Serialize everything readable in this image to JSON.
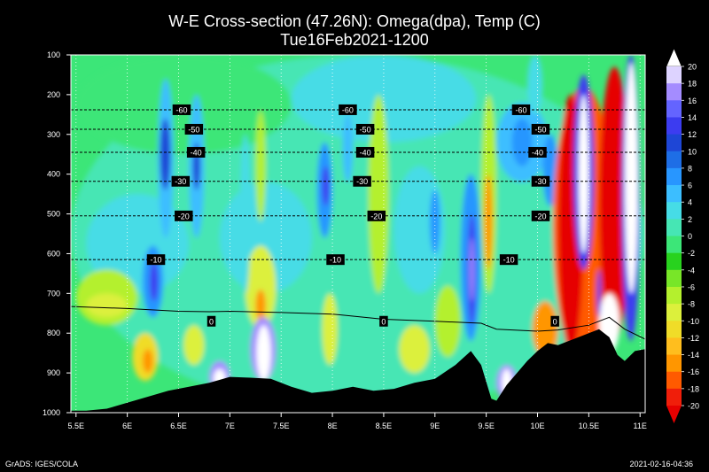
{
  "chart_data": {
    "type": "heatmap",
    "title": "W-E Cross-section (47.26N): Omega(dpa), Temp (C)",
    "subtitle": "Tue16Feb2021-1200",
    "x_ticks": [
      "5.5E",
      "6E",
      "6.5E",
      "7E",
      "7.5E",
      "8E",
      "8.5E",
      "9E",
      "9.5E",
      "10E",
      "10.5E",
      "11E"
    ],
    "x_values": [
      5.5,
      6,
      6.5,
      7,
      7.5,
      8,
      8.5,
      9,
      9.5,
      10,
      10.5,
      11
    ],
    "xlim": [
      5.45,
      11.05
    ],
    "y_ticks": [
      "100",
      "200",
      "300",
      "400",
      "500",
      "600",
      "700",
      "800",
      "900",
      "1000"
    ],
    "y_values": [
      100,
      200,
      300,
      400,
      500,
      600,
      700,
      800,
      900,
      1000
    ],
    "ylim": [
      100,
      1000
    ],
    "colorbar": {
      "labels": [
        "20",
        "18",
        "16",
        "14",
        "12",
        "10",
        "8",
        "6",
        "4",
        "2",
        "0",
        "-2",
        "-4",
        "-6",
        "-8",
        "-10",
        "-12",
        "-14",
        "-16",
        "-18",
        "-20"
      ],
      "colors": [
        "#ffffff",
        "#ddd3ff",
        "#a48cff",
        "#6464ff",
        "#3c3cf0",
        "#1e46d6",
        "#1e6ee6",
        "#2896ff",
        "#3cbeff",
        "#46dce6",
        "#46e6b4",
        "#3ce678",
        "#28d21e",
        "#78e628",
        "#b4f02d",
        "#dcf03c",
        "#f0dc28",
        "#ffbe1e",
        "#ff9600",
        "#ff5a00",
        "#f01e0a",
        "#e60000"
      ]
    },
    "temperature_contours": [
      {
        "label": "-60",
        "p": 238,
        "label_x": [
          6.53,
          8.15,
          9.84
        ]
      },
      {
        "label": "-50",
        "p": 287,
        "label_x": [
          6.65,
          8.32,
          10.03
        ]
      },
      {
        "label": "-40",
        "p": 345,
        "label_x": [
          6.67,
          8.32,
          10.0
        ]
      },
      {
        "label": "-30",
        "p": 418,
        "label_x": [
          6.52,
          8.29,
          10.03
        ]
      },
      {
        "label": "-20",
        "p": 505,
        "label_x": [
          6.55,
          8.43,
          10.03
        ]
      },
      {
        "label": "-10",
        "p": 615,
        "label_x": [
          6.28,
          8.03,
          9.72
        ]
      },
      {
        "label": "0",
        "p": 770,
        "label_x": [
          6.82,
          8.5,
          10.17
        ]
      }
    ],
    "zero_isotherm": [
      [
        5.45,
        733
      ],
      [
        6,
        738
      ],
      [
        6.5,
        745
      ],
      [
        6.8,
        746
      ],
      [
        7,
        745
      ],
      [
        7.5,
        748
      ],
      [
        8,
        752
      ],
      [
        8.5,
        765
      ],
      [
        9,
        770
      ],
      [
        9.45,
        775
      ],
      [
        9.6,
        790
      ],
      [
        10,
        795
      ],
      [
        10.2,
        792
      ],
      [
        10.5,
        780
      ],
      [
        10.7,
        760
      ],
      [
        10.85,
        790
      ],
      [
        11.05,
        815
      ]
    ],
    "terrain": [
      [
        5.45,
        995
      ],
      [
        5.6,
        995
      ],
      [
        5.8,
        990
      ],
      [
        6,
        975
      ],
      [
        6.2,
        960
      ],
      [
        6.4,
        945
      ],
      [
        6.6,
        935
      ],
      [
        6.8,
        925
      ],
      [
        7,
        910
      ],
      [
        7.2,
        912
      ],
      [
        7.4,
        915
      ],
      [
        7.6,
        935
      ],
      [
        7.8,
        950
      ],
      [
        8,
        945
      ],
      [
        8.2,
        935
      ],
      [
        8.4,
        945
      ],
      [
        8.6,
        940
      ],
      [
        8.8,
        925
      ],
      [
        9,
        915
      ],
      [
        9.2,
        880
      ],
      [
        9.35,
        845
      ],
      [
        9.45,
        880
      ],
      [
        9.55,
        965
      ],
      [
        9.6,
        970
      ],
      [
        9.7,
        930
      ],
      [
        9.8,
        900
      ],
      [
        9.9,
        870
      ],
      [
        10,
        845
      ],
      [
        10.1,
        825
      ],
      [
        10.2,
        830
      ],
      [
        10.3,
        820
      ],
      [
        10.45,
        805
      ],
      [
        10.6,
        790
      ],
      [
        10.7,
        810
      ],
      [
        10.78,
        855
      ],
      [
        10.85,
        870
      ],
      [
        10.95,
        845
      ],
      [
        11.05,
        840
      ]
    ]
  },
  "footer": {
    "left": "GrADS: IGES/COLA",
    "right": "2021-02-16-04:36"
  }
}
